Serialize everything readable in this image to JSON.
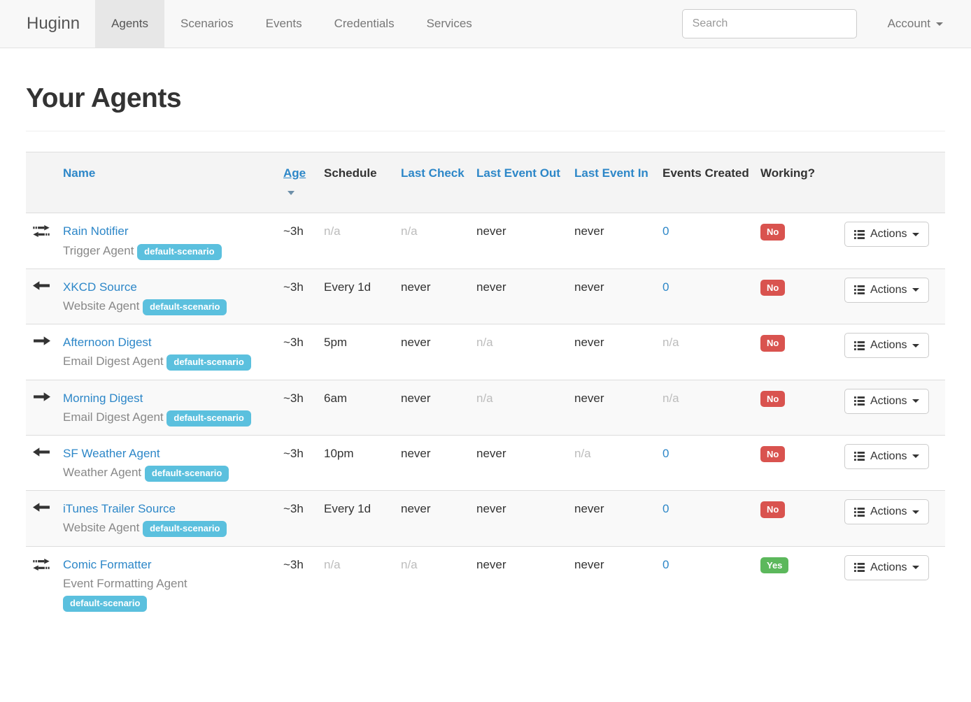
{
  "colors": {
    "accent": "#2d87c8",
    "info": "#5bc0de",
    "danger": "#d9534f",
    "success": "#5cb85c",
    "muted": "#bcbcbc"
  },
  "navbar": {
    "brand": "Huginn",
    "items": [
      {
        "label": "Agents",
        "active": true
      },
      {
        "label": "Scenarios",
        "active": false
      },
      {
        "label": "Events",
        "active": false
      },
      {
        "label": "Credentials",
        "active": false
      },
      {
        "label": "Services",
        "active": false
      }
    ],
    "search_placeholder": "Search",
    "account_label": "Account"
  },
  "page": {
    "title": "Your Agents"
  },
  "table": {
    "actions_label": "Actions",
    "headers": [
      {
        "label": "Name",
        "link": true,
        "sorted": false
      },
      {
        "label": "Age",
        "link": true,
        "sorted": true
      },
      {
        "label": "Schedule",
        "link": false,
        "sorted": false
      },
      {
        "label": "Last Check",
        "link": true,
        "sorted": false
      },
      {
        "label": "Last Event Out",
        "link": true,
        "sorted": false
      },
      {
        "label": "Last Event In",
        "link": true,
        "sorted": false
      },
      {
        "label": "Events Created",
        "link": false,
        "sorted": false
      },
      {
        "label": "Working?",
        "link": false,
        "sorted": false
      }
    ],
    "rows": [
      {
        "icon": "exchange-icon",
        "name": "Rain Notifier",
        "type": "Trigger Agent",
        "scenario": "default-scenario",
        "age": {
          "text": "~3h",
          "style": "dark"
        },
        "schedule": {
          "text": "n/a",
          "style": "muted"
        },
        "last_check": {
          "text": "n/a",
          "style": "muted"
        },
        "last_event_out": {
          "text": "never",
          "style": "dark"
        },
        "last_event_in": {
          "text": "never",
          "style": "dark"
        },
        "events_created": {
          "text": "0",
          "style": "link"
        },
        "working": {
          "text": "No",
          "status": "danger"
        }
      },
      {
        "icon": "arrow-left-icon",
        "name": "XKCD Source",
        "type": "Website Agent",
        "scenario": "default-scenario",
        "age": {
          "text": "~3h",
          "style": "dark"
        },
        "schedule": {
          "text": "Every 1d",
          "style": "dark"
        },
        "last_check": {
          "text": "never",
          "style": "dark"
        },
        "last_event_out": {
          "text": "never",
          "style": "dark"
        },
        "last_event_in": {
          "text": "never",
          "style": "dark"
        },
        "events_created": {
          "text": "0",
          "style": "link"
        },
        "working": {
          "text": "No",
          "status": "danger"
        }
      },
      {
        "icon": "arrow-right-icon",
        "name": "Afternoon Digest",
        "type": "Email Digest Agent",
        "scenario": "default-scenario",
        "age": {
          "text": "~3h",
          "style": "dark"
        },
        "schedule": {
          "text": "5pm",
          "style": "dark"
        },
        "last_check": {
          "text": "never",
          "style": "dark"
        },
        "last_event_out": {
          "text": "n/a",
          "style": "muted"
        },
        "last_event_in": {
          "text": "never",
          "style": "dark"
        },
        "events_created": {
          "text": "n/a",
          "style": "muted"
        },
        "working": {
          "text": "No",
          "status": "danger"
        }
      },
      {
        "icon": "arrow-right-icon",
        "name": "Morning Digest",
        "type": "Email Digest Agent",
        "scenario": "default-scenario",
        "age": {
          "text": "~3h",
          "style": "dark"
        },
        "schedule": {
          "text": "6am",
          "style": "dark"
        },
        "last_check": {
          "text": "never",
          "style": "dark"
        },
        "last_event_out": {
          "text": "n/a",
          "style": "muted"
        },
        "last_event_in": {
          "text": "never",
          "style": "dark"
        },
        "events_created": {
          "text": "n/a",
          "style": "muted"
        },
        "working": {
          "text": "No",
          "status": "danger"
        }
      },
      {
        "icon": "arrow-left-icon",
        "name": "SF Weather Agent",
        "type": "Weather Agent",
        "scenario": "default-scenario",
        "age": {
          "text": "~3h",
          "style": "dark"
        },
        "schedule": {
          "text": "10pm",
          "style": "dark"
        },
        "last_check": {
          "text": "never",
          "style": "dark"
        },
        "last_event_out": {
          "text": "never",
          "style": "dark"
        },
        "last_event_in": {
          "text": "n/a",
          "style": "muted"
        },
        "events_created": {
          "text": "0",
          "style": "link"
        },
        "working": {
          "text": "No",
          "status": "danger"
        }
      },
      {
        "icon": "arrow-left-icon",
        "name": "iTunes Trailer Source",
        "type": "Website Agent",
        "scenario": "default-scenario",
        "age": {
          "text": "~3h",
          "style": "dark"
        },
        "schedule": {
          "text": "Every 1d",
          "style": "dark"
        },
        "last_check": {
          "text": "never",
          "style": "dark"
        },
        "last_event_out": {
          "text": "never",
          "style": "dark"
        },
        "last_event_in": {
          "text": "never",
          "style": "dark"
        },
        "events_created": {
          "text": "0",
          "style": "link"
        },
        "working": {
          "text": "No",
          "status": "danger"
        }
      },
      {
        "icon": "exchange-icon",
        "name": "Comic Formatter",
        "type": "Event Formatting Agent",
        "scenario": "default-scenario",
        "age": {
          "text": "~3h",
          "style": "dark"
        },
        "schedule": {
          "text": "n/a",
          "style": "muted"
        },
        "last_check": {
          "text": "n/a",
          "style": "muted"
        },
        "last_event_out": {
          "text": "never",
          "style": "dark"
        },
        "last_event_in": {
          "text": "never",
          "style": "dark"
        },
        "events_created": {
          "text": "0",
          "style": "link"
        },
        "working": {
          "text": "Yes",
          "status": "success"
        }
      }
    ]
  }
}
